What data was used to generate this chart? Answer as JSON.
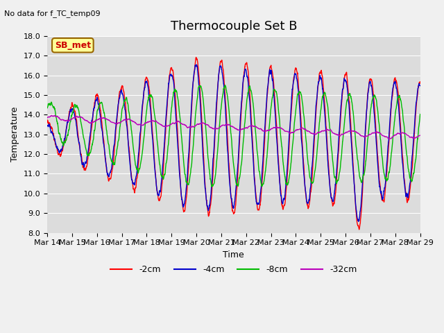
{
  "title": "Thermocouple Set B",
  "top_left_text": "No data for f_TC_temp09",
  "legend_box_label": "SB_met",
  "xlabel": "Time",
  "ylabel": "Temperature",
  "ylim": [
    8.0,
    18.0
  ],
  "yticks": [
    8.0,
    9.0,
    10.0,
    11.0,
    12.0,
    13.0,
    14.0,
    15.0,
    16.0,
    17.0,
    18.0
  ],
  "x_tick_labels": [
    "Mar 14",
    "Mar 15",
    "Mar 16",
    "Mar 17",
    "Mar 18",
    "Mar 19",
    "Mar 20",
    "Mar 21",
    "Mar 22",
    "Mar 23",
    "Mar 24",
    "Mar 25",
    "Mar 26",
    "Mar 27",
    "Mar 28",
    "Mar 29"
  ],
  "colors": {
    "neg2cm": "#ff0000",
    "neg4cm": "#0000cc",
    "neg8cm": "#00bb00",
    "neg32cm": "#bb00bb"
  },
  "plot_bg_color": "#dcdcdc",
  "fig_bg_color": "#f0f0f0",
  "legend_labels": [
    "-2cm",
    "-4cm",
    "-8cm",
    "-32cm"
  ],
  "title_fontsize": 13,
  "axis_label_fontsize": 9,
  "tick_fontsize": 8
}
